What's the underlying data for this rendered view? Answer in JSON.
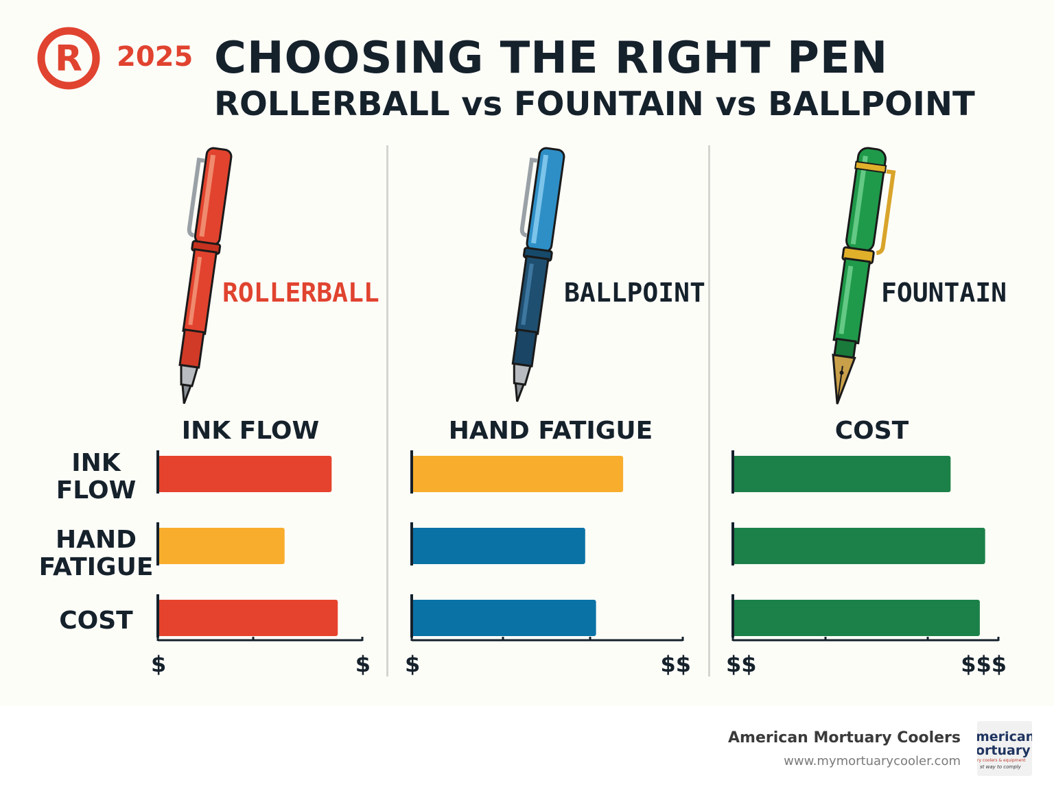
{
  "header": {
    "logo_letter": "R",
    "year": "2025",
    "title": "CHOOSING THE RIGHT PEN",
    "subtitle": "ROLLERBALL vs FOUNTAIN vs BALLPOINT"
  },
  "pens": [
    {
      "name": "ROLLERBALL",
      "color": "#e0432f"
    },
    {
      "name": "BALLPOINT",
      "color": "#1b5f86"
    },
    {
      "name": "FOUNTAIN",
      "color": "#1f8a45"
    }
  ],
  "row_labels": [
    "INK\nFLOW",
    "HAND\nFATIGUE",
    "COST"
  ],
  "colors": {
    "red": "#e5432d",
    "yellow": "#f8ad2d",
    "blue": "#0b72a6",
    "green": "#1c8148",
    "accent": "#e0432f"
  },
  "chart_data": [
    {
      "type": "bar",
      "orientation": "horizontal",
      "title": "INK FLOW",
      "categories": [
        "INK FLOW",
        "HAND FATIGUE",
        "COST"
      ],
      "values": [
        0.85,
        0.62,
        0.88
      ],
      "bar_colors": [
        "#e5432d",
        "#f8ad2d",
        "#e5432d"
      ],
      "xlim": [
        0,
        1
      ],
      "x_tick_labels": [
        "$",
        "$"
      ]
    },
    {
      "type": "bar",
      "orientation": "horizontal",
      "title": "HAND FATIGUE",
      "categories": [
        "INK FLOW",
        "HAND FATIGUE",
        "COST"
      ],
      "values": [
        0.78,
        0.64,
        0.68
      ],
      "bar_colors": [
        "#f8ad2d",
        "#0b72a6",
        "#0b72a6"
      ],
      "xlim": [
        0,
        1
      ],
      "x_tick_labels": [
        "$",
        "$$"
      ]
    },
    {
      "type": "bar",
      "orientation": "horizontal",
      "title": "COST",
      "categories": [
        "INK FLOW",
        "HAND FATIGUE",
        "COST"
      ],
      "values": [
        0.82,
        0.95,
        0.93
      ],
      "bar_colors": [
        "#1c8148",
        "#1c8148",
        "#1c8148"
      ],
      "xlim": [
        0,
        1
      ],
      "x_tick_labels": [
        "$$",
        "$$$"
      ]
    }
  ],
  "footer": {
    "company": "American Mortuary Coolers",
    "url": "www.mymortuarycooler.com",
    "badge_line1": "merican",
    "badge_line2": "ortuary",
    "badge_line3": "ry coolers & equipment",
    "badge_line4": "st way to comply"
  }
}
